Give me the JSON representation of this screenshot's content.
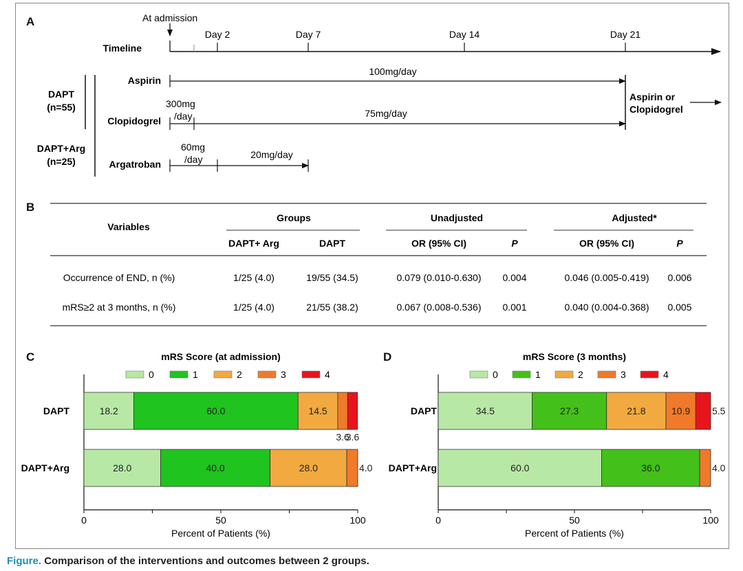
{
  "panel_a": {
    "letter": "A",
    "at_admission": "At admission",
    "timeline_label": "Timeline",
    "days": [
      "Day 2",
      "Day 7",
      "Day 14",
      "Day 21"
    ],
    "dapt_group": [
      "DAPT",
      "(n=55)"
    ],
    "dapt_arg_group": [
      "DAPT+Arg",
      "(n=25)"
    ],
    "aspirin": {
      "label": "Aspirin",
      "dose": "100mg/day"
    },
    "clopidogrel": {
      "label": "Clopidogrel",
      "loading": [
        "300mg",
        "/day"
      ],
      "dose": "75mg/day"
    },
    "argatroban": {
      "label": "Argatroban",
      "loading": [
        "60mg",
        "/day"
      ],
      "dose": "20mg/day"
    },
    "after": [
      "Aspirin or",
      "Clopidogrel"
    ]
  },
  "panel_b": {
    "letter": "B",
    "headers": {
      "variables": "Variables",
      "groups": "Groups",
      "unadjusted": "Unadjusted",
      "adjusted": "Adjusted*",
      "dapt_arg": "DAPT+ Arg",
      "dapt": "DAPT",
      "or1": "OR (95% CI)",
      "p1": "P",
      "or2": "OR (95% CI)",
      "p2": "P"
    },
    "rows": [
      {
        "variable": "Occurrence of END, n (%)",
        "dapt_arg": "1/25 (4.0)",
        "dapt": "19/55 (34.5)",
        "or_unadj": "0.079 (0.010-0.630)",
        "p_unadj": "0.004",
        "or_adj": "0.046 (0.005-0.419)",
        "p_adj": "0.006"
      },
      {
        "variable": "mRS≥2 at 3 months, n (%)",
        "dapt_arg": "1/25 (4.0)",
        "dapt": "21/55 (38.2)",
        "or_unadj": "0.067 (0.008-0.536)",
        "p_unadj": "0.001",
        "or_adj": "0.040 (0.004-0.368)",
        "p_adj": "0.005"
      }
    ]
  },
  "chart_data": [
    {
      "type": "bar",
      "orientation": "horizontal-stacked",
      "panel": "C",
      "title": "mRS Score (at admission)",
      "categories": [
        "DAPT",
        "DAPT+Arg"
      ],
      "series": [
        {
          "name": "0",
          "values": [
            18.2,
            28.0
          ],
          "color": "#b8e8a6",
          "labels": [
            "18.2",
            "28.0"
          ]
        },
        {
          "name": "1",
          "values": [
            60.0,
            40.0
          ],
          "color": "#1fc41f",
          "labels": [
            "60.0",
            "40.0"
          ]
        },
        {
          "name": "2",
          "values": [
            14.5,
            28.0
          ],
          "color": "#f2a93f",
          "labels": [
            "14.5",
            "28.0"
          ]
        },
        {
          "name": "3",
          "values": [
            3.6,
            4.0
          ],
          "color": "#f07a2a",
          "labels": [
            "3.6",
            "4.0"
          ]
        },
        {
          "name": "4",
          "values": [
            3.6,
            0.0
          ],
          "color": "#e8141c",
          "labels": [
            "3.6",
            ""
          ]
        }
      ],
      "xlabel": "Percent of Patients (%)",
      "xlim": [
        0,
        100
      ],
      "xticks": [
        "0",
        "50",
        "100"
      ]
    },
    {
      "type": "bar",
      "orientation": "horizontal-stacked",
      "panel": "D",
      "title": "mRS Score (3 months)",
      "categories": [
        "DAPT",
        "DAPT+Arg"
      ],
      "series": [
        {
          "name": "0",
          "values": [
            34.5,
            60.0
          ],
          "color": "#b8e8a6",
          "labels": [
            "34.5",
            "60.0"
          ]
        },
        {
          "name": "1",
          "values": [
            27.3,
            36.0
          ],
          "color": "#44c01a",
          "labels": [
            "27.3",
            "36.0"
          ]
        },
        {
          "name": "2",
          "values": [
            21.8,
            0.0
          ],
          "color": "#f2a93f",
          "labels": [
            "21.8",
            ""
          ]
        },
        {
          "name": "3",
          "values": [
            10.9,
            4.0
          ],
          "color": "#f07a2a",
          "labels": [
            "10.9",
            "4.0"
          ]
        },
        {
          "name": "4",
          "values": [
            5.5,
            0.0
          ],
          "color": "#e8141c",
          "labels": [
            "5.5",
            ""
          ]
        }
      ],
      "xlabel": "Percent of Patients (%)",
      "xlim": [
        0,
        100
      ],
      "xticks": [
        "0",
        "50",
        "100"
      ]
    }
  ],
  "caption": {
    "label": "Figure.",
    "text": "Comparison of the interventions and outcomes between 2 groups."
  }
}
